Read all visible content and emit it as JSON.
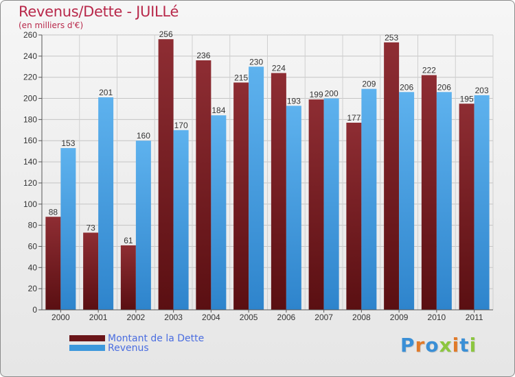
{
  "title": "Revenus/Dette - JUILLé",
  "subtitle": "(en milliers d'€)",
  "legend": {
    "dette": "Montant de la Dette",
    "revenus": "Revenus"
  },
  "logo": "Proxiti",
  "colors": {
    "dette": "#7a1f24",
    "dette_light": "#8b2a30",
    "revenus": "#3d98dc",
    "revenus_light": "#59aeea"
  },
  "chart_data": {
    "type": "bar",
    "title": "Revenus/Dette - JUILLé",
    "categories": [
      "2000",
      "2001",
      "2002",
      "2003",
      "2004",
      "2005",
      "2006",
      "2007",
      "2008",
      "2009",
      "2010",
      "2011"
    ],
    "series": [
      {
        "name": "Montant de la Dette",
        "values": [
          88,
          73,
          61,
          256,
          236,
          215,
          224,
          199,
          177,
          253,
          222,
          195
        ]
      },
      {
        "name": "Revenus",
        "values": [
          153,
          201,
          160,
          170,
          184,
          230,
          193,
          200,
          209,
          206,
          206,
          203
        ]
      }
    ],
    "ylim": [
      0,
      260
    ],
    "yticks": [
      0,
      20,
      40,
      60,
      80,
      100,
      120,
      140,
      160,
      180,
      200,
      220,
      240,
      260
    ],
    "grid": true,
    "legend_position": "bottom-left"
  }
}
